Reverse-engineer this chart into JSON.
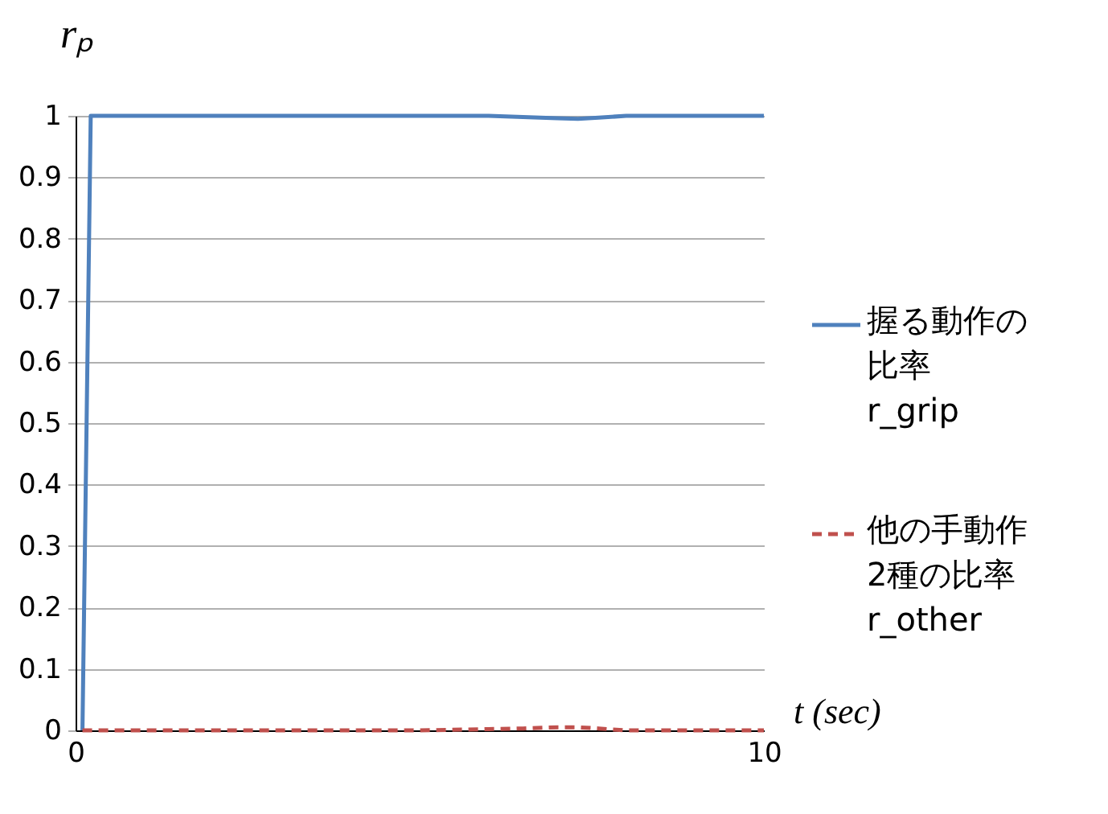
{
  "chart_data": {
    "type": "line",
    "xlabel": "t (sec)",
    "ylabel": "rₚ",
    "x": [
      0.1,
      0.22,
      1,
      2,
      3,
      4,
      5,
      6,
      6.5,
      7,
      7.3,
      7.6,
      8,
      9,
      10
    ],
    "series": [
      {
        "name": "握る動作の比率 r_grip",
        "color": "#4f81bd",
        "line_style": "solid",
        "values": [
          0,
          1,
          1,
          1,
          1,
          1,
          1,
          1,
          0.998,
          0.996,
          0.995,
          0.997,
          1,
          1,
          1
        ]
      },
      {
        "name": "他の手動作2種の比率 r_other",
        "color": "#c0504d",
        "line_style": "dashed",
        "values": [
          0,
          0,
          0,
          0,
          0,
          0,
          0,
          0.002,
          0.003,
          0.005,
          0.005,
          0.003,
          0,
          0,
          0
        ]
      }
    ],
    "xlim": [
      0,
      10
    ],
    "xticks": [
      0,
      10
    ],
    "ylim": [
      0,
      1
    ],
    "yticks": [
      0,
      0.1,
      0.2,
      0.3,
      0.4,
      0.5,
      0.6,
      0.7,
      0.8,
      0.9,
      1
    ],
    "grid": "y",
    "legend": "right",
    "marker": "none"
  }
}
